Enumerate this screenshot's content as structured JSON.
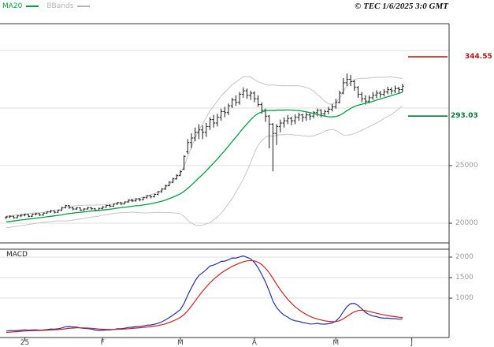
{
  "header": {
    "legend": [
      {
        "label": "MA20",
        "color": "#00a040"
      },
      {
        "label": "BBands",
        "color": "#b4b4b4"
      }
    ],
    "copyright": "© TEC 1/6/2025 3:0 GMT"
  },
  "macd_panel": {
    "label": "MACD"
  },
  "levels": {
    "resistance": {
      "label": "344.55",
      "value": 34455,
      "color": "#bb1111"
    },
    "support": {
      "label": "293.03",
      "value": 29303,
      "color": "#007a33"
    }
  },
  "colors": {
    "background": "#ffffff",
    "border": "#333333",
    "grid": "#dedede",
    "bars": "#1a1a1a",
    "ma20": "#00a040",
    "bbands": "#c6c6c6",
    "resistance": "#bb1111",
    "support": "#007a33",
    "macd_line": "#2233aa",
    "macd_signal": "#cc2222",
    "axis_label": "#999999",
    "month_label": "#444444"
  },
  "chart_data": {
    "type": "ohlc+bollinger+macd",
    "title": "",
    "price_axis": {
      "ticks": [
        {
          "value": 25000,
          "label": "25000"
        },
        {
          "value": 20000,
          "label": "20000"
        }
      ],
      "grid_values": [
        20000,
        25000,
        30000,
        35000
      ],
      "range_hint": [
        18300,
        37300
      ]
    },
    "macd_axis": {
      "ticks": [
        {
          "value": 2000,
          "label": "2000"
        },
        {
          "value": 1500,
          "label": "1500"
        },
        {
          "value": 1000,
          "label": "1000"
        }
      ],
      "range_hint": [
        0,
        2200
      ]
    },
    "x_ticks": [
      {
        "label": "25",
        "i": 5
      },
      {
        "label": "F",
        "i": 26
      },
      {
        "label": "M",
        "i": 47
      },
      {
        "label": "A",
        "i": 67
      },
      {
        "label": "M",
        "i": 89
      },
      {
        "label": "J",
        "i": 109.5
      }
    ],
    "indicators": {
      "ma_period": 20,
      "bb_mult": 2,
      "macd_fast": 12,
      "macd_slow": 26,
      "macd_signal_period": 9
    },
    "pre_closes": [
      19650,
      19700,
      19720,
      19780,
      19820,
      19860,
      19900,
      19960,
      20000,
      20050,
      20100,
      20140,
      20180,
      20230,
      20270,
      20310,
      20350,
      20390,
      20420,
      20450
    ],
    "bars": [
      [
        20480,
        20620,
        20380,
        20550
      ],
      [
        20550,
        20680,
        20450,
        20600
      ],
      [
        20600,
        20650,
        20390,
        20470
      ],
      [
        20470,
        20700,
        20420,
        20640
      ],
      [
        20640,
        20780,
        20540,
        20700
      ],
      [
        20700,
        20820,
        20600,
        20760
      ],
      [
        20760,
        20800,
        20520,
        20600
      ],
      [
        20600,
        20820,
        20550,
        20780
      ],
      [
        20780,
        20900,
        20680,
        20820
      ],
      [
        20820,
        20880,
        20620,
        20700
      ],
      [
        20700,
        20920,
        20650,
        20870
      ],
      [
        20870,
        21050,
        20800,
        20980
      ],
      [
        20980,
        21150,
        20900,
        21070
      ],
      [
        21070,
        21120,
        20850,
        20950
      ],
      [
        20950,
        21200,
        20900,
        21120
      ],
      [
        21120,
        21420,
        21060,
        21350
      ],
      [
        21350,
        21600,
        21280,
        21520
      ],
      [
        21520,
        21580,
        21250,
        21340
      ],
      [
        21340,
        21420,
        21120,
        21230
      ],
      [
        21230,
        21400,
        21150,
        21330
      ],
      [
        21330,
        21380,
        21060,
        21150
      ],
      [
        21150,
        21320,
        21080,
        21230
      ],
      [
        21230,
        21420,
        21180,
        21330
      ],
      [
        21330,
        21400,
        21150,
        21250
      ],
      [
        21250,
        21320,
        21020,
        21120
      ],
      [
        21120,
        21340,
        21080,
        21280
      ],
      [
        21280,
        21480,
        21220,
        21400
      ],
      [
        21400,
        21600,
        21340,
        21540
      ],
      [
        21540,
        21650,
        21380,
        21480
      ],
      [
        21480,
        21720,
        21420,
        21660
      ],
      [
        21660,
        21850,
        21600,
        21780
      ],
      [
        21780,
        21830,
        21560,
        21680
      ],
      [
        21680,
        21900,
        21620,
        21840
      ],
      [
        21840,
        22080,
        21780,
        22010
      ],
      [
        22010,
        22120,
        21830,
        21940
      ],
      [
        21940,
        22180,
        21880,
        22110
      ],
      [
        22110,
        22170,
        21900,
        22040
      ],
      [
        22040,
        22280,
        21980,
        22210
      ],
      [
        22210,
        22450,
        22150,
        22380
      ],
      [
        22380,
        22440,
        22160,
        22290
      ],
      [
        22290,
        22560,
        22230,
        22500
      ],
      [
        22500,
        22800,
        22440,
        22720
      ],
      [
        22720,
        23050,
        22660,
        22960
      ],
      [
        22960,
        23350,
        22900,
        23260
      ],
      [
        23260,
        23650,
        23200,
        23560
      ],
      [
        23560,
        23950,
        23480,
        23850
      ],
      [
        23850,
        24250,
        23780,
        24150
      ],
      [
        24150,
        24600,
        24080,
        24480
      ],
      [
        24700,
        25900,
        24600,
        25800
      ],
      [
        26200,
        27300,
        26000,
        27000
      ],
      [
        27000,
        27800,
        26500,
        27400
      ],
      [
        27400,
        28300,
        27100,
        27900
      ],
      [
        27900,
        28600,
        27300,
        28100
      ],
      [
        28100,
        28500,
        27300,
        27900
      ],
      [
        27900,
        28700,
        27500,
        28400
      ],
      [
        28400,
        29200,
        28100,
        29000
      ],
      [
        29000,
        29400,
        28300,
        28700
      ],
      [
        28700,
        29500,
        28400,
        29200
      ],
      [
        29200,
        29950,
        28900,
        29700
      ],
      [
        29700,
        30100,
        29200,
        29600
      ],
      [
        29600,
        30400,
        29400,
        30200
      ],
      [
        30200,
        30900,
        30000,
        30700
      ],
      [
        30700,
        31100,
        30200,
        30500
      ],
      [
        30500,
        31400,
        30300,
        31200
      ],
      [
        31200,
        31800,
        30900,
        31500
      ],
      [
        31500,
        31700,
        30800,
        31100
      ],
      [
        31100,
        31500,
        30700,
        31300
      ],
      [
        31300,
        31450,
        30500,
        30800
      ],
      [
        30800,
        31100,
        30100,
        30300
      ],
      [
        30300,
        30500,
        29500,
        29800
      ],
      [
        29800,
        29950,
        28800,
        29300
      ],
      [
        29300,
        29400,
        26500,
        28600
      ],
      [
        28600,
        28700,
        24500,
        27800
      ],
      [
        27800,
        28600,
        26800,
        28400
      ],
      [
        28400,
        29000,
        27900,
        28700
      ],
      [
        28700,
        29200,
        28300,
        28900
      ],
      [
        28900,
        29400,
        28600,
        29100
      ],
      [
        29100,
        29250,
        28500,
        28900
      ],
      [
        28900,
        29450,
        28600,
        29200
      ],
      [
        29200,
        29600,
        28900,
        29400
      ],
      [
        29400,
        29500,
        28800,
        29200
      ],
      [
        29200,
        29600,
        28900,
        29400
      ],
      [
        29400,
        29550,
        28950,
        29300
      ],
      [
        29300,
        29750,
        29100,
        29600
      ],
      [
        29600,
        29950,
        29300,
        29800
      ],
      [
        29800,
        29900,
        29200,
        29500
      ],
      [
        29500,
        29850,
        29250,
        29700
      ],
      [
        29700,
        30100,
        29450,
        29900
      ],
      [
        29900,
        30350,
        29700,
        30100
      ],
      [
        30100,
        30800,
        29950,
        30500
      ],
      [
        30500,
        31500,
        30400,
        31300
      ],
      [
        31300,
        32600,
        31200,
        32200
      ],
      [
        32200,
        33000,
        31900,
        32500
      ],
      [
        32500,
        32900,
        31900,
        32300
      ],
      [
        32300,
        32450,
        31500,
        31800
      ],
      [
        31800,
        31900,
        30900,
        31200
      ],
      [
        31200,
        31400,
        30500,
        30800
      ],
      [
        30800,
        31100,
        30300,
        30600
      ],
      [
        30600,
        31100,
        30400,
        30900
      ],
      [
        30900,
        31400,
        30700,
        31100
      ],
      [
        31100,
        31550,
        30850,
        31300
      ],
      [
        31300,
        31500,
        30900,
        31200
      ],
      [
        31200,
        31650,
        31000,
        31400
      ],
      [
        31400,
        31850,
        31200,
        31600
      ],
      [
        31600,
        31800,
        31200,
        31500
      ],
      [
        31500,
        31950,
        31300,
        31700
      ],
      [
        31700,
        31850,
        31250,
        31600
      ],
      [
        31600,
        32100,
        31400,
        31900
      ]
    ]
  }
}
